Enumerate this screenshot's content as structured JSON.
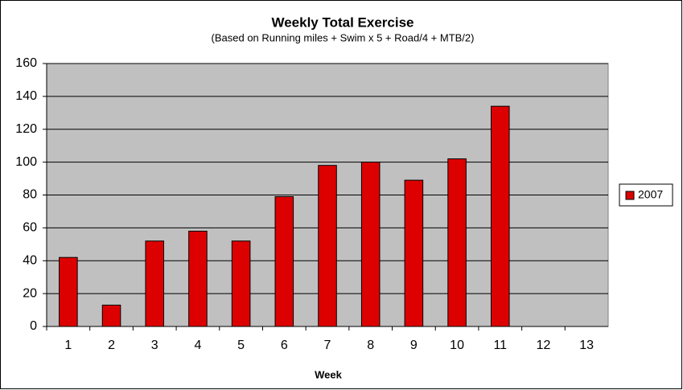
{
  "chart_data": {
    "type": "bar",
    "title": "Weekly Total Exercise",
    "subtitle": "(Based on Running miles + Swim x 5 + Road/4 + MTB/2)",
    "x_label": "Week",
    "categories": [
      "1",
      "2",
      "3",
      "4",
      "5",
      "6",
      "7",
      "8",
      "9",
      "10",
      "11",
      "12",
      "13"
    ],
    "series": [
      {
        "name": "2007",
        "color": "#dd0000",
        "values": [
          42,
          13,
          52,
          58,
          52,
          79,
          98,
          100,
          89,
          102,
          134,
          null,
          null
        ]
      }
    ],
    "ylim": [
      0,
      160
    ],
    "yticks": [
      0,
      20,
      40,
      60,
      80,
      100,
      120,
      140,
      160
    ],
    "grid": true,
    "legend": "right"
  }
}
